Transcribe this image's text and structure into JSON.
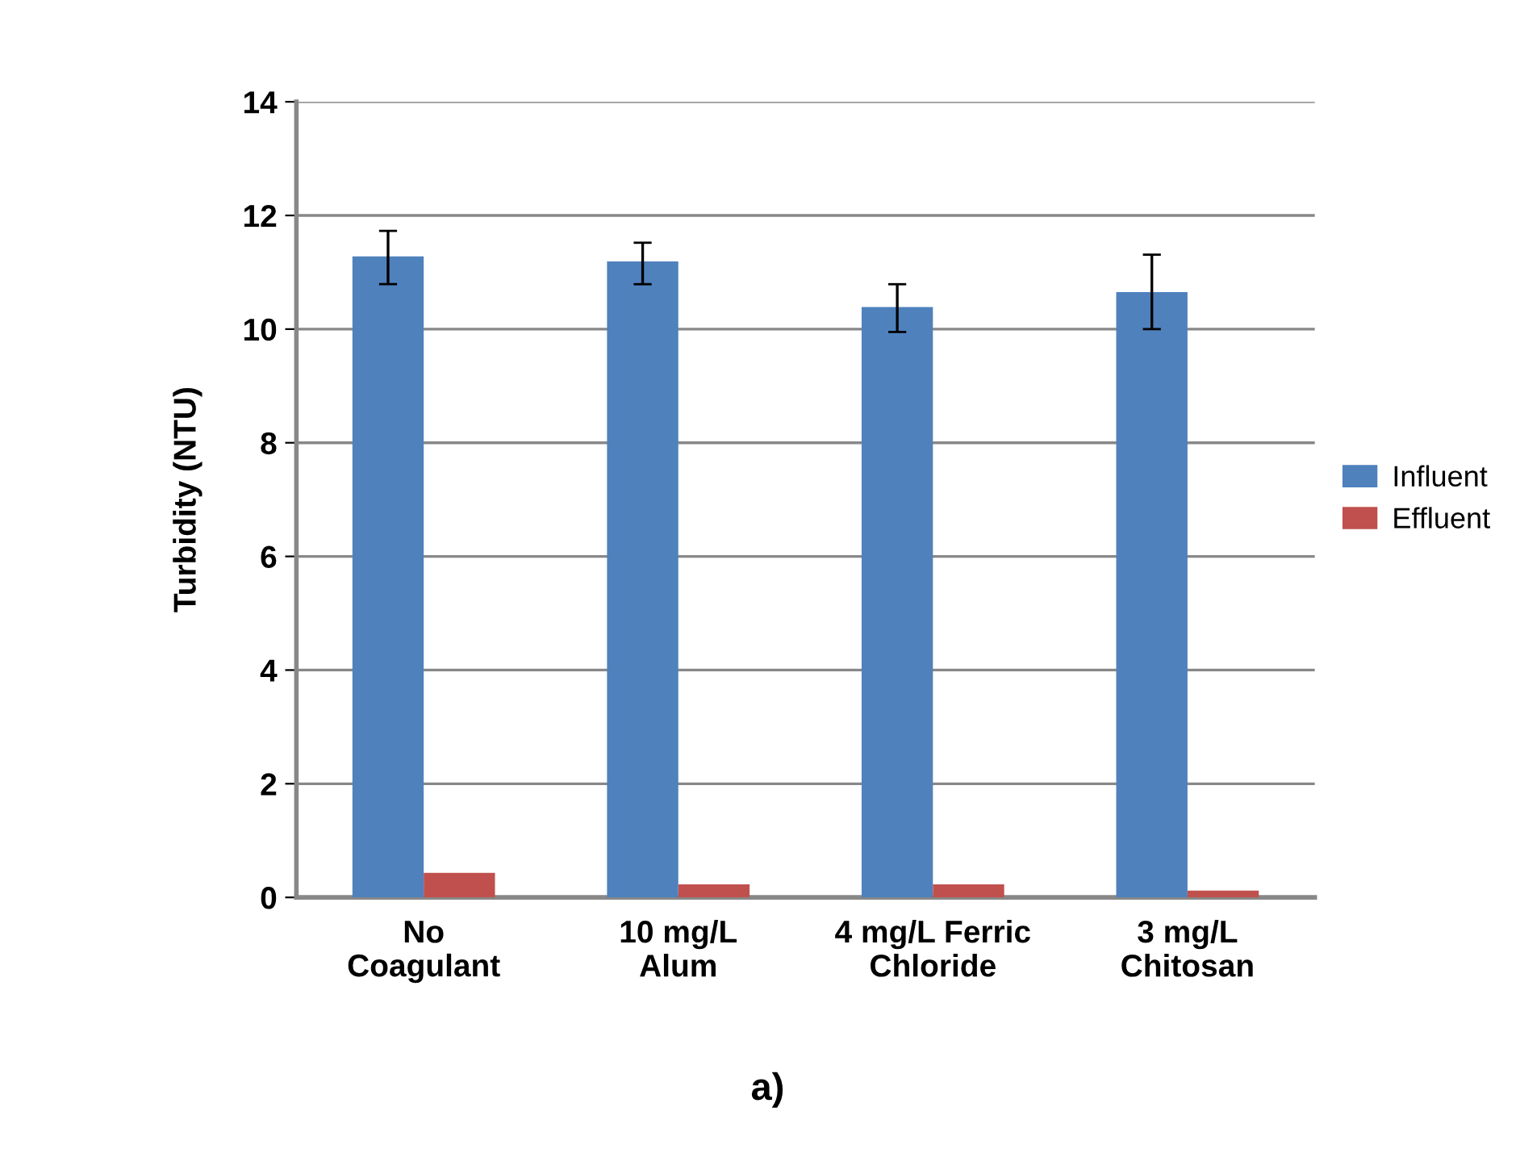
{
  "chart_data": {
    "type": "bar",
    "ylabel": "Turbidity (NTU)",
    "categories": [
      "No\nCoagulant",
      "10 mg/L\nAlum",
      "4 mg/L Ferric\nChloride",
      "3 mg/L\nChitosan"
    ],
    "series": [
      {
        "name": "Influent",
        "color": "#4f81bd",
        "values": [
          11.28,
          11.19,
          10.39,
          10.65
        ],
        "errors": [
          [
            10.79,
            11.73
          ],
          [
            10.79,
            11.52
          ],
          [
            9.95,
            10.79
          ],
          [
            10.0,
            11.31
          ]
        ]
      },
      {
        "name": "Effluent",
        "color": "#c0504d",
        "values": [
          0.43,
          0.23,
          0.23,
          0.12
        ]
      }
    ],
    "ylim": [
      0,
      14
    ],
    "yticks": [
      0,
      2,
      4,
      6,
      8,
      10,
      12,
      14
    ],
    "grid": "y",
    "legend": "right",
    "annotations": [
      "a)"
    ]
  }
}
